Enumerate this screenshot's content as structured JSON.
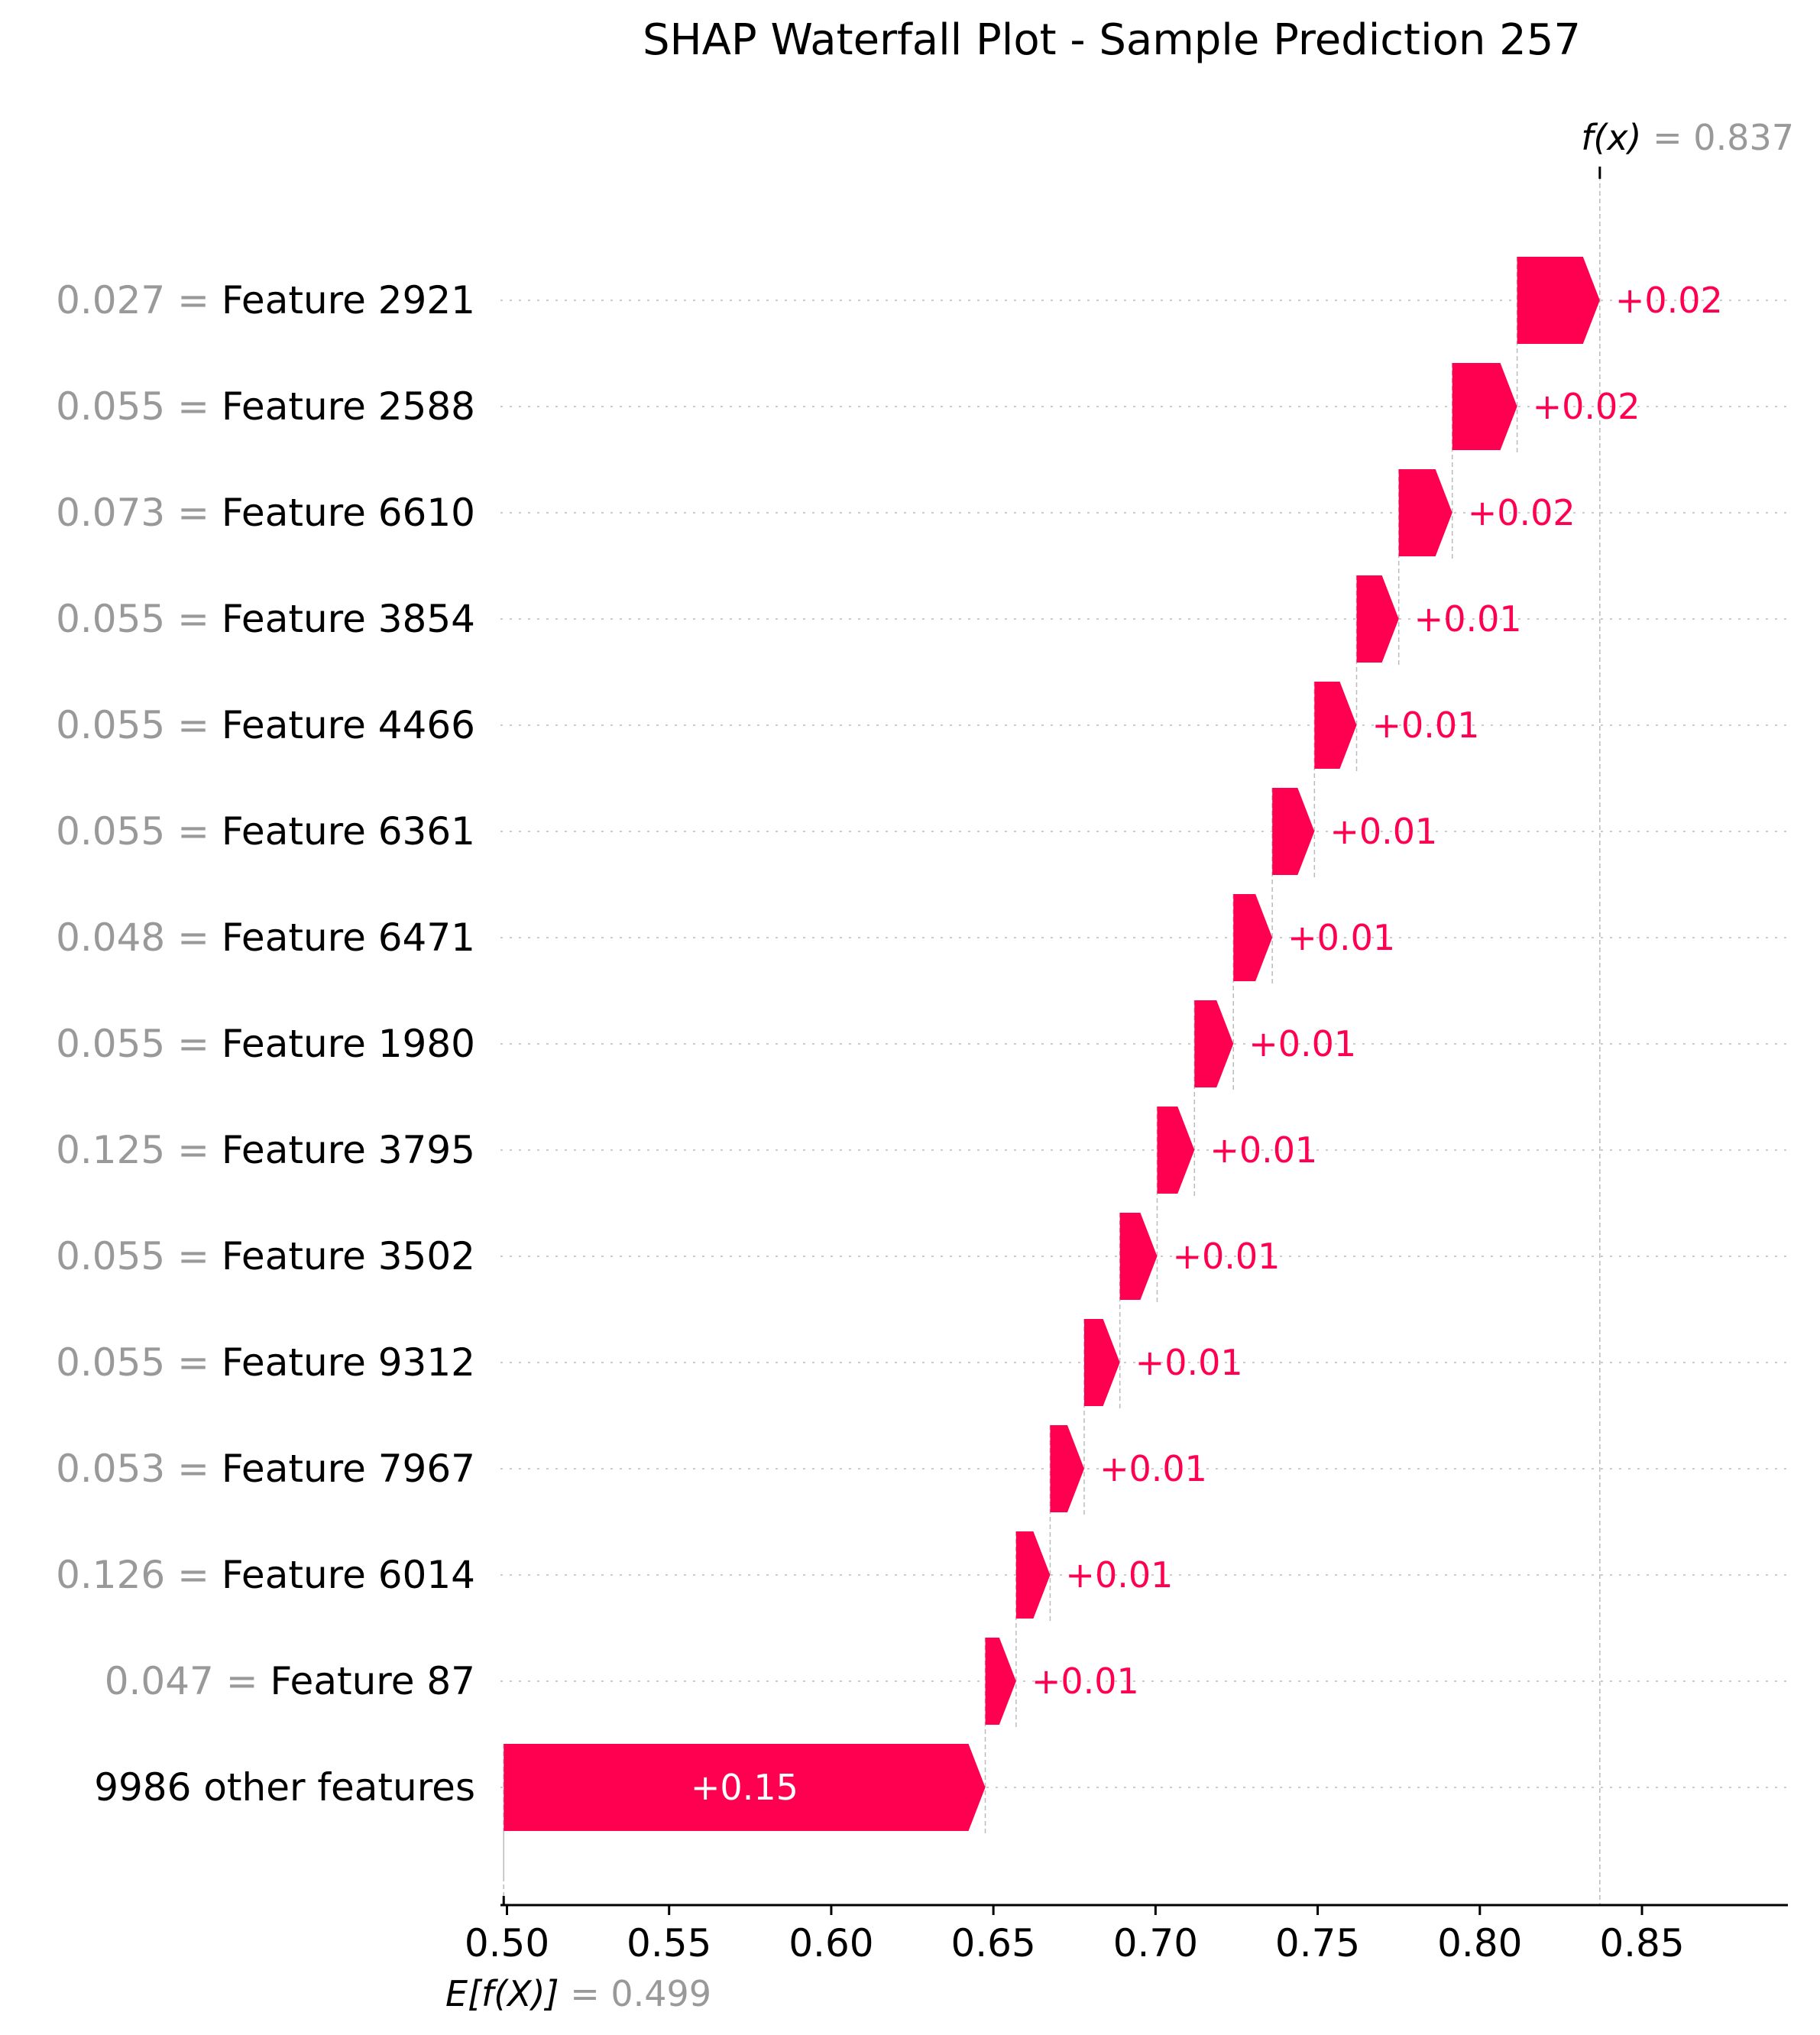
{
  "chart_data": {
    "type": "waterfall",
    "title": "SHAP Waterfall Plot - Sample Prediction 257",
    "fx_label": "f(x)",
    "fx_value": "0.837",
    "ex_label": "E[f(X)]",
    "ex_value": "0.499",
    "base_value": 0.499,
    "final_value": 0.837,
    "xlim": [
      0.498,
      0.895
    ],
    "x_ticks": [
      0.5,
      0.55,
      0.6,
      0.65,
      0.7,
      0.75,
      0.8,
      0.85
    ],
    "x_tick_labels": [
      "0.50",
      "0.55",
      "0.60",
      "0.65",
      "0.70",
      "0.75",
      "0.80",
      "0.85"
    ],
    "colors": {
      "positive": "#ff0051",
      "feature_value": "#999999",
      "axis": "#000000",
      "grid": "#cccccc"
    },
    "rows": [
      {
        "feature_value": "0.027",
        "feature": "Feature 2921",
        "start": 0.8115,
        "end": 0.837,
        "label": "+0.02"
      },
      {
        "feature_value": "0.055",
        "feature": "Feature 2588",
        "start": 0.7915,
        "end": 0.8115,
        "label": "+0.02"
      },
      {
        "feature_value": "0.073",
        "feature": "Feature 6610",
        "start": 0.775,
        "end": 0.7915,
        "label": "+0.02"
      },
      {
        "feature_value": "0.055",
        "feature": "Feature 3854",
        "start": 0.762,
        "end": 0.775,
        "label": "+0.01"
      },
      {
        "feature_value": "0.055",
        "feature": "Feature 4466",
        "start": 0.749,
        "end": 0.762,
        "label": "+0.01"
      },
      {
        "feature_value": "0.055",
        "feature": "Feature 6361",
        "start": 0.736,
        "end": 0.749,
        "label": "+0.01"
      },
      {
        "feature_value": "0.048",
        "feature": "Feature 6471",
        "start": 0.724,
        "end": 0.736,
        "label": "+0.01"
      },
      {
        "feature_value": "0.055",
        "feature": "Feature 1980",
        "start": 0.712,
        "end": 0.724,
        "label": "+0.01"
      },
      {
        "feature_value": "0.125",
        "feature": "Feature 3795",
        "start": 0.7005,
        "end": 0.712,
        "label": "+0.01"
      },
      {
        "feature_value": "0.055",
        "feature": "Feature 3502",
        "start": 0.689,
        "end": 0.7005,
        "label": "+0.01"
      },
      {
        "feature_value": "0.055",
        "feature": "Feature 9312",
        "start": 0.678,
        "end": 0.689,
        "label": "+0.01"
      },
      {
        "feature_value": "0.053",
        "feature": "Feature 7967",
        "start": 0.6675,
        "end": 0.678,
        "label": "+0.01"
      },
      {
        "feature_value": "0.126",
        "feature": "Feature 6014",
        "start": 0.657,
        "end": 0.6675,
        "label": "+0.01"
      },
      {
        "feature_value": "0.047",
        "feature": "Feature 87",
        "start": 0.6475,
        "end": 0.657,
        "label": "+0.01"
      },
      {
        "feature_value": "",
        "feature": "9986 other features",
        "start": 0.499,
        "end": 0.6475,
        "label": "+0.15"
      }
    ]
  }
}
